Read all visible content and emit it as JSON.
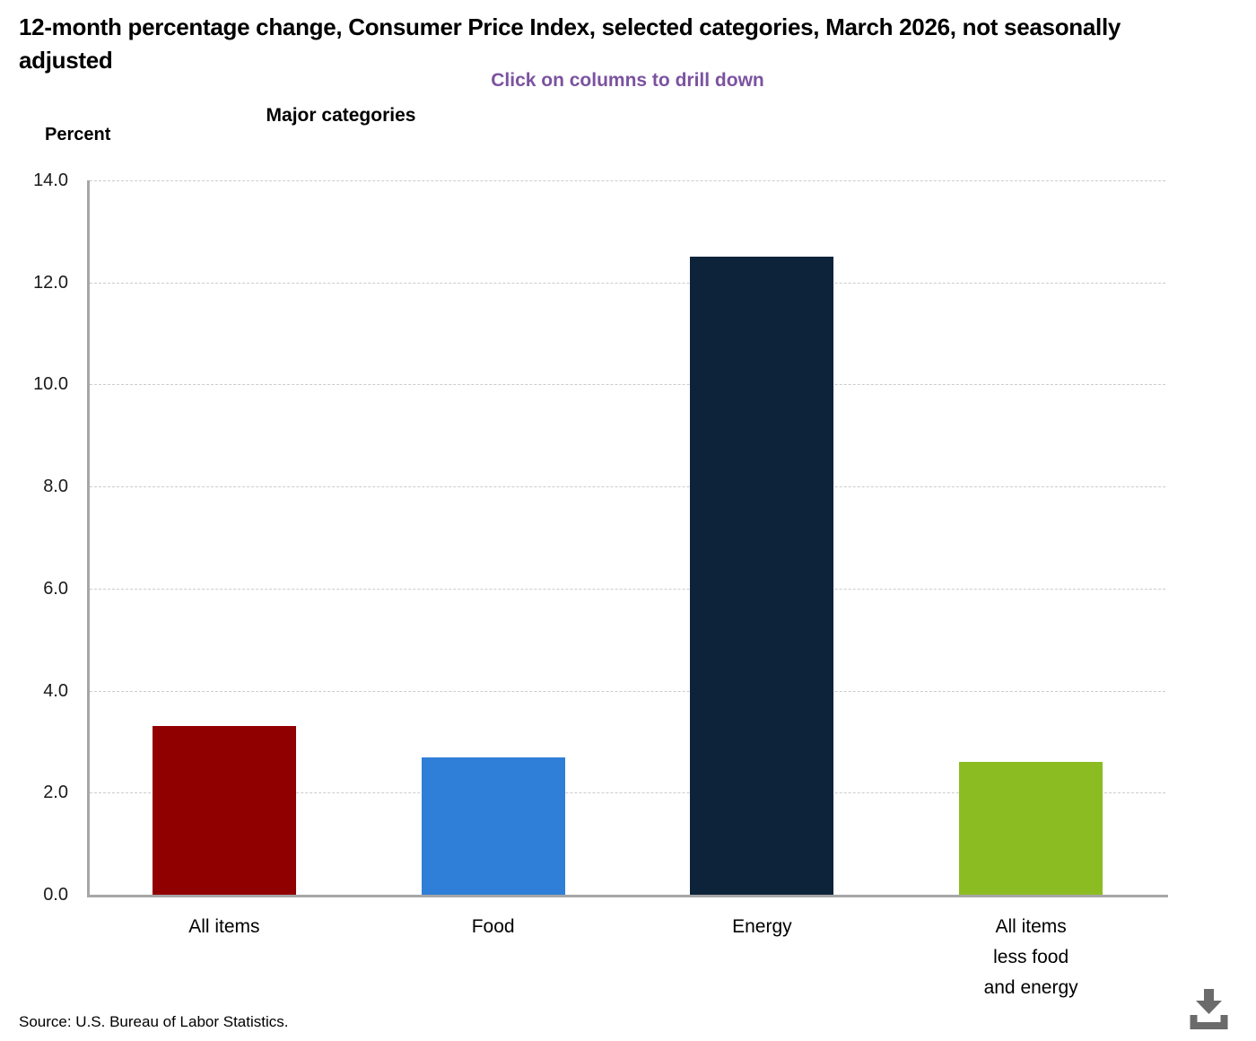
{
  "chart_data": {
    "type": "bar",
    "title": "12-month percentage change, Consumer Price Index, selected categories, March 2026, not seasonally adjusted",
    "subtitle": "Click on columns to drill down",
    "xlabel": "Major categories",
    "ylabel": "Percent",
    "categories": [
      "All items",
      "Food",
      "Energy",
      "All items\nless food\nand energy"
    ],
    "values": [
      3.3,
      2.7,
      12.5,
      2.6
    ],
    "bar_colors": [
      "#910000",
      "#2f7ed8",
      "#0d233a",
      "#8bbc21"
    ],
    "ylim": [
      0,
      14
    ],
    "ytick_step": 2,
    "ytick_labels": [
      "0.0",
      "2.0",
      "4.0",
      "6.0",
      "8.0",
      "10.0",
      "12.0",
      "14.0"
    ],
    "grid": "horizontal-dashed",
    "legend": "none"
  },
  "source": "Source: U.S. Bureau of Labor Statistics.",
  "export_icon": "download-icon",
  "colors": {
    "subtitle_purple": "#7b52a0",
    "axis_line_gray": "#a6a6a6",
    "gridline_gray": "#cccccc",
    "icon_gray": "#6b6b6b"
  }
}
